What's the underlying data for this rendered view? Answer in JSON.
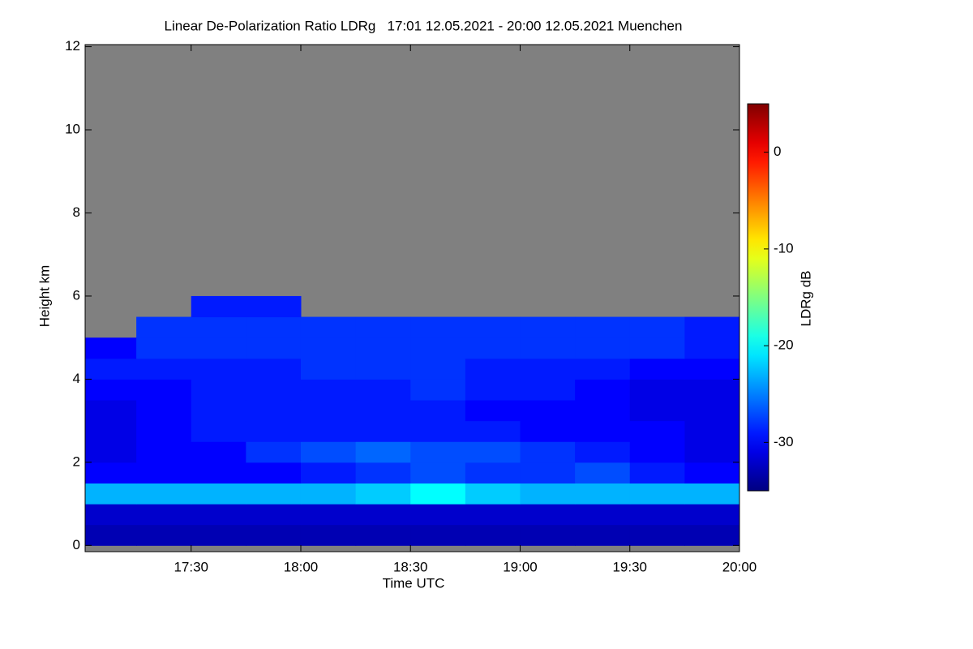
{
  "chart_data": {
    "type": "heatmap",
    "title": "Linear De-Polarization Ratio LDRg   17:01 12.05.2021 - 20:00 12.05.2021 Muenchen",
    "xlabel": "Time UTC",
    "ylabel": "Height km",
    "xlim": [
      17.0167,
      20.0
    ],
    "xticks": [
      {
        "value": 17.5,
        "label": "17:30"
      },
      {
        "value": 18.0,
        "label": "18:00"
      },
      {
        "value": 18.5,
        "label": "18:30"
      },
      {
        "value": 19.0,
        "label": "19:00"
      },
      {
        "value": 19.5,
        "label": "19:30"
      },
      {
        "value": 20.0,
        "label": "20:00"
      }
    ],
    "ylim": [
      -0.15,
      12.05
    ],
    "yticks": [
      0,
      2,
      4,
      6,
      8,
      10,
      12
    ],
    "x_edges": [
      17.0167,
      17.25,
      17.5,
      17.75,
      18.0,
      18.25,
      18.5,
      18.75,
      19.0,
      19.25,
      19.5,
      19.75,
      20.0
    ],
    "y_edges": [
      0,
      0.5,
      1,
      1.5,
      2,
      2.5,
      3,
      3.5,
      4,
      4.5,
      5,
      5.5,
      6
    ],
    "z": [
      [
        -33,
        -33,
        -33,
        -33,
        -33,
        -33,
        -33,
        -33,
        -33,
        -33,
        -33,
        -33
      ],
      [
        -32,
        -32,
        -32,
        -32,
        -32,
        -32,
        -32,
        -32,
        -32,
        -32,
        -32,
        -32
      ],
      [
        -23,
        -23,
        -23,
        -23,
        -23,
        -22,
        -20,
        -22,
        -23,
        -23,
        -23,
        -23
      ],
      [
        -30,
        -30,
        -30,
        -30,
        -29,
        -28,
        -27,
        -28,
        -28,
        -27,
        -29,
        -30
      ],
      [
        -31,
        -30,
        -30,
        -28,
        -27,
        -26,
        -27,
        -27,
        -28,
        -29,
        -30,
        -31
      ],
      [
        -31,
        -30,
        -29,
        -29,
        -29,
        -29,
        -29,
        -29,
        -30,
        -30,
        -30,
        -31
      ],
      [
        -31,
        -30,
        -29,
        -29,
        -29,
        -29,
        -29,
        -30,
        -30,
        -30,
        -31,
        -31
      ],
      [
        -30,
        -30,
        -29,
        -29,
        -29,
        -29,
        -28,
        -29,
        -29,
        -30,
        -31,
        -31
      ],
      [
        -29,
        -29,
        -29,
        -29,
        -28,
        -28,
        -28,
        -29,
        -29,
        -29,
        -30,
        -30
      ],
      [
        -30,
        -28,
        -28,
        -28,
        -28,
        -28,
        -28,
        -28,
        -28,
        -28,
        -28,
        -29
      ],
      [
        null,
        -28,
        -28,
        -28,
        -28,
        -28,
        -28,
        -28,
        -28,
        -28,
        -28,
        -29
      ],
      [
        null,
        null,
        -29,
        -29,
        null,
        null,
        null,
        null,
        null,
        null,
        null,
        null
      ]
    ],
    "missing_color": "#808080",
    "colormap": "jet",
    "colorbar": {
      "label": "LDRg dB",
      "clim": [
        -35,
        5
      ],
      "ticks": [
        0,
        -10,
        -20,
        -30
      ]
    }
  }
}
